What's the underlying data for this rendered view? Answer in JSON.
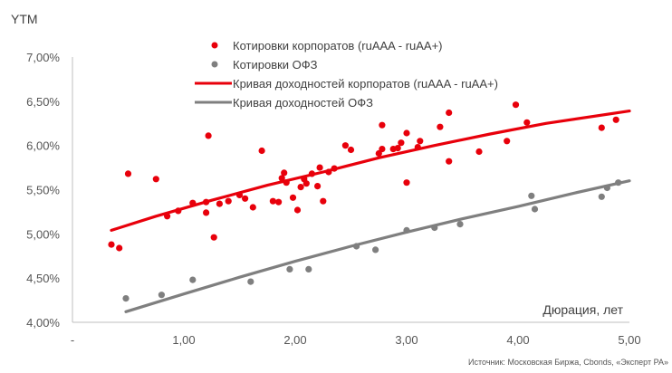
{
  "chart_data": {
    "type": "scatter",
    "ylabel": "YTM",
    "xlabel": "Дюрация, лет",
    "xlim": [
      0,
      5
    ],
    "ylim": [
      4.0,
      7.0
    ],
    "x_ticks": [
      "-",
      "1,00",
      "2,00",
      "3,00",
      "4,00",
      "5,00"
    ],
    "y_ticks": [
      "4,00%",
      "4,50%",
      "5,00%",
      "5,50%",
      "6,00%",
      "6,50%",
      "7,00%"
    ],
    "grid": false,
    "legend_position": "top",
    "source": "Источник: Московская Биржа, Cbonds, «Эксперт РА»",
    "colors": {
      "corporate": "#e8000b",
      "ofz": "#7f7f7f"
    },
    "series": [
      {
        "name": "Котировки корпоратов (ruAAA - ruAA+)",
        "kind": "points",
        "color_key": "corporate",
        "points": [
          [
            0.35,
            4.88
          ],
          [
            0.42,
            4.84
          ],
          [
            0.5,
            5.68
          ],
          [
            0.75,
            5.62
          ],
          [
            0.85,
            5.2
          ],
          [
            0.95,
            5.26
          ],
          [
            1.08,
            5.35
          ],
          [
            1.2,
            5.24
          ],
          [
            1.2,
            5.36
          ],
          [
            1.22,
            6.11
          ],
          [
            1.27,
            4.96
          ],
          [
            1.32,
            5.34
          ],
          [
            1.4,
            5.37
          ],
          [
            1.5,
            5.44
          ],
          [
            1.55,
            5.4
          ],
          [
            1.62,
            5.3
          ],
          [
            1.7,
            5.94
          ],
          [
            1.8,
            5.37
          ],
          [
            1.85,
            5.36
          ],
          [
            1.88,
            5.63
          ],
          [
            1.9,
            5.69
          ],
          [
            1.92,
            5.58
          ],
          [
            1.98,
            5.41
          ],
          [
            2.02,
            5.27
          ],
          [
            2.05,
            5.53
          ],
          [
            2.08,
            5.62
          ],
          [
            2.1,
            5.57
          ],
          [
            2.15,
            5.68
          ],
          [
            2.2,
            5.54
          ],
          [
            2.22,
            5.75
          ],
          [
            2.25,
            5.37
          ],
          [
            2.3,
            5.7
          ],
          [
            2.35,
            5.74
          ],
          [
            2.45,
            6.0
          ],
          [
            2.5,
            5.95
          ],
          [
            2.75,
            5.91
          ],
          [
            2.78,
            5.96
          ],
          [
            2.78,
            6.23
          ],
          [
            2.88,
            5.96
          ],
          [
            2.92,
            5.97
          ],
          [
            2.95,
            6.03
          ],
          [
            3.0,
            6.14
          ],
          [
            3.0,
            5.58
          ],
          [
            3.1,
            5.98
          ],
          [
            3.12,
            6.05
          ],
          [
            3.3,
            6.21
          ],
          [
            3.38,
            6.37
          ],
          [
            3.38,
            5.82
          ],
          [
            3.65,
            5.93
          ],
          [
            3.9,
            6.05
          ],
          [
            3.98,
            6.46
          ],
          [
            4.08,
            6.26
          ],
          [
            4.75,
            6.2
          ],
          [
            4.88,
            6.29
          ]
        ]
      },
      {
        "name": "Котировки ОФЗ",
        "kind": "points",
        "color_key": "ofz",
        "points": [
          [
            0.48,
            4.27
          ],
          [
            0.8,
            4.31
          ],
          [
            1.08,
            4.48
          ],
          [
            1.6,
            4.46
          ],
          [
            1.95,
            4.6
          ],
          [
            2.12,
            4.6
          ],
          [
            2.55,
            4.86
          ],
          [
            2.72,
            4.82
          ],
          [
            3.0,
            5.04
          ],
          [
            3.25,
            5.07
          ],
          [
            3.48,
            5.11
          ],
          [
            4.12,
            5.43
          ],
          [
            4.15,
            5.28
          ],
          [
            4.75,
            5.42
          ],
          [
            4.8,
            5.52
          ],
          [
            4.9,
            5.58
          ]
        ]
      },
      {
        "name": "Кривая доходностей корпоратов (ruAAA - ruAA+)",
        "kind": "line",
        "color_key": "corporate",
        "points": [
          [
            0.35,
            5.04
          ],
          [
            0.75,
            5.2
          ],
          [
            1.25,
            5.38
          ],
          [
            1.75,
            5.55
          ],
          [
            2.25,
            5.7
          ],
          [
            2.75,
            5.86
          ],
          [
            3.25,
            6.0
          ],
          [
            3.75,
            6.13
          ],
          [
            4.25,
            6.25
          ],
          [
            5.0,
            6.39
          ]
        ]
      },
      {
        "name": "Кривая доходностей ОФЗ",
        "kind": "line",
        "color_key": "ofz",
        "points": [
          [
            0.48,
            4.12
          ],
          [
            1.0,
            4.32
          ],
          [
            1.5,
            4.51
          ],
          [
            2.0,
            4.69
          ],
          [
            2.5,
            4.86
          ],
          [
            3.0,
            5.02
          ],
          [
            3.5,
            5.17
          ],
          [
            4.0,
            5.31
          ],
          [
            4.5,
            5.46
          ],
          [
            5.0,
            5.6
          ]
        ]
      }
    ]
  }
}
